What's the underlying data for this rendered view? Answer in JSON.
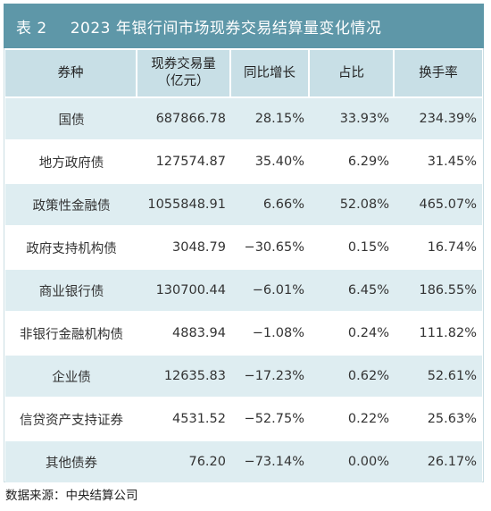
{
  "title": {
    "table_number": "表 2",
    "text": "2023 年银行间市场现券交易结算量变化情况"
  },
  "columns": {
    "type": "券种",
    "volume_line1": "现券交易量",
    "volume_line2": "（亿元）",
    "yoy": "同比增长",
    "share": "占比",
    "turnover": "换手率"
  },
  "rows": [
    {
      "type": "国债",
      "volume": "687866.78",
      "yoy": "28.15%",
      "share": "33.93%",
      "turnover": "234.39%"
    },
    {
      "type": "地方政府债",
      "volume": "127574.87",
      "yoy": "35.40%",
      "share": "6.29%",
      "turnover": "31.45%"
    },
    {
      "type": "政策性金融债",
      "volume": "1055848.91",
      "yoy": "6.66%",
      "share": "52.08%",
      "turnover": "465.07%"
    },
    {
      "type": "政府支持机构债",
      "volume": "3048.79",
      "yoy": "−30.65%",
      "share": "0.15%",
      "turnover": "16.74%"
    },
    {
      "type": "商业银行债",
      "volume": "130700.44",
      "yoy": "−6.01%",
      "share": "6.45%",
      "turnover": "186.55%"
    },
    {
      "type": "非银行金融机构债",
      "volume": "4883.94",
      "yoy": "−1.08%",
      "share": "0.24%",
      "turnover": "111.82%"
    },
    {
      "type": "企业债",
      "volume": "12635.83",
      "yoy": "−17.23%",
      "share": "0.62%",
      "turnover": "52.61%"
    },
    {
      "type": "信贷资产支持证券",
      "volume": "4531.52",
      "yoy": "−52.75%",
      "share": "0.22%",
      "turnover": "25.63%"
    },
    {
      "type": "其他债券",
      "volume": "76.20",
      "yoy": "−73.14%",
      "share": "0.00%",
      "turnover": "26.17%"
    }
  ],
  "source": "数据来源：中央结算公司",
  "colors": {
    "title_bg": "#5e97a8",
    "header_bg": "#c8dfe6",
    "stripe_bg": "#deedf1"
  }
}
